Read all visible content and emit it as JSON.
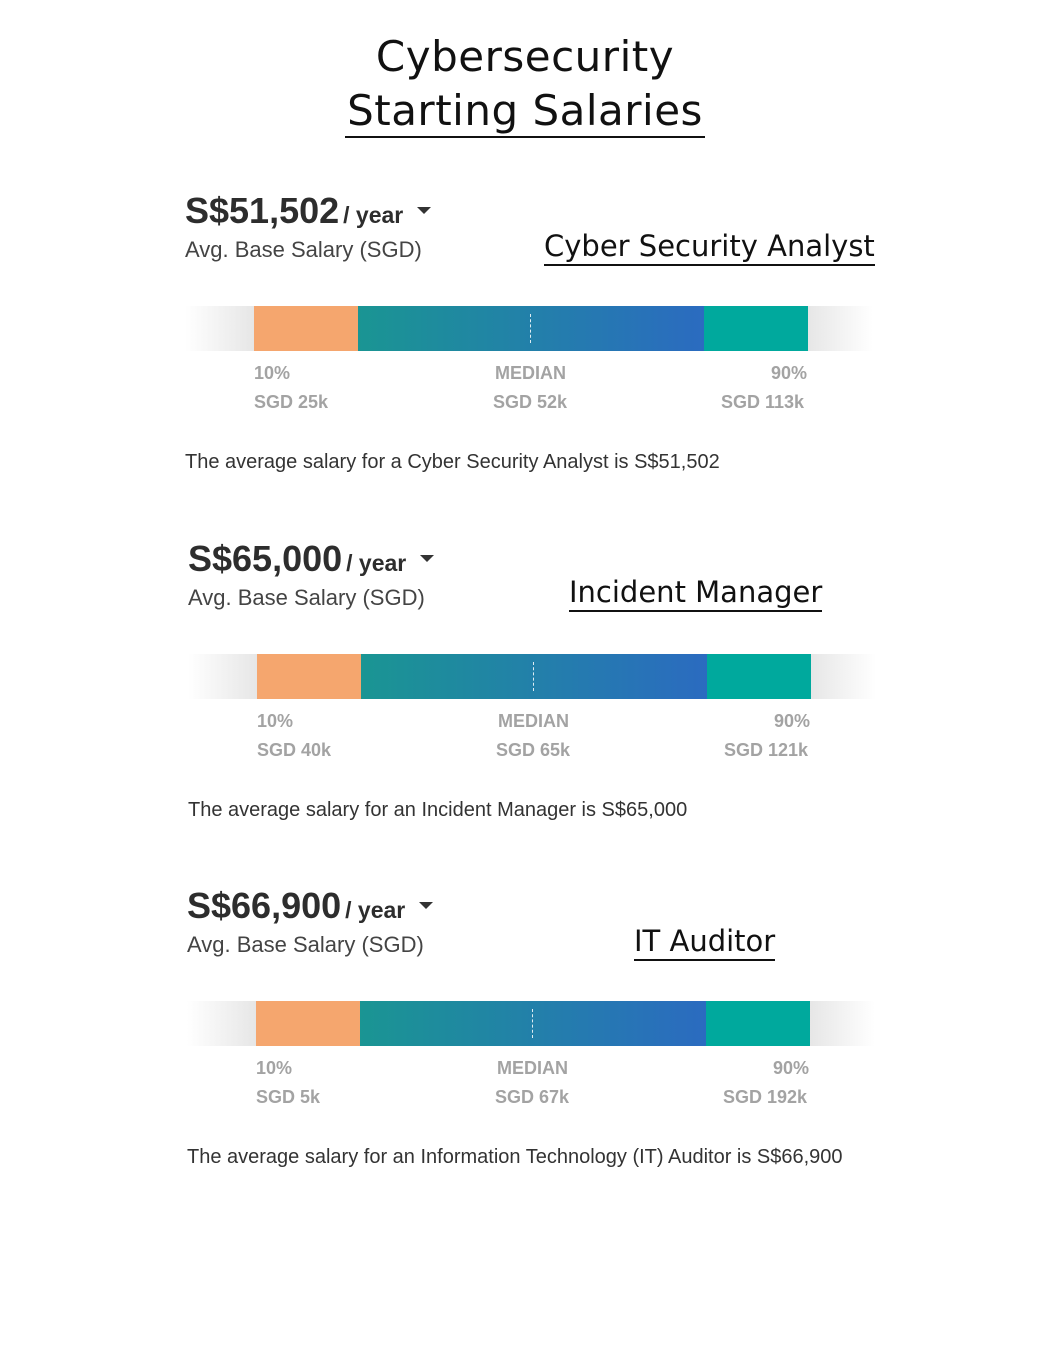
{
  "title": {
    "line1": "Cybersecurity",
    "line2": "Starting Salaries"
  },
  "colors": {
    "low": "#f5a66e",
    "mid_start": "#1a9593",
    "mid_end": "#2b6bc0",
    "high": "#00a99d",
    "label_gray": "#a3a3a3"
  },
  "sections": [
    {
      "role": "Cyber Security Analyst",
      "amount": "S$51,502",
      "period": "/ year",
      "sublabel": "Avg. Base Salary (SGD)",
      "p10_label": "10%",
      "median_label": "MEDIAN",
      "p90_label": "90%",
      "p10_value": "SGD 25k",
      "median_value": "SGD 52k",
      "p90_value": "SGD 113k",
      "description": "The average salary for a Cyber Security Analyst is S$51,502"
    },
    {
      "role": "Incident Manager",
      "amount": "S$65,000",
      "period": "/ year",
      "sublabel": "Avg. Base Salary (SGD)",
      "p10_label": "10%",
      "median_label": "MEDIAN",
      "p90_label": "90%",
      "p10_value": "SGD 40k",
      "median_value": "SGD 65k",
      "p90_value": "SGD 121k",
      "description": "The average salary for an Incident Manager is S$65,000"
    },
    {
      "role": "IT Auditor",
      "amount": "S$66,900",
      "period": "/ year",
      "sublabel": "Avg. Base Salary (SGD)",
      "p10_label": "10%",
      "median_label": "MEDIAN",
      "p90_label": "90%",
      "p10_value": "SGD 5k",
      "median_value": "SGD 67k",
      "p90_value": "SGD 192k",
      "description": "The average salary for an Information Technology (IT) Auditor is S$66,900"
    }
  ],
  "chart_data": [
    {
      "type": "bar",
      "title": "Cyber Security Analyst",
      "unit": "SGD",
      "average": 51502,
      "percentiles": {
        "p10": 25000,
        "median": 52000,
        "p90": 113000
      }
    },
    {
      "type": "bar",
      "title": "Incident Manager",
      "unit": "SGD",
      "average": 65000,
      "percentiles": {
        "p10": 40000,
        "median": 65000,
        "p90": 121000
      }
    },
    {
      "type": "bar",
      "title": "IT Auditor",
      "unit": "SGD",
      "average": 66900,
      "percentiles": {
        "p10": 5000,
        "median": 67000,
        "p90": 192000
      }
    }
  ]
}
